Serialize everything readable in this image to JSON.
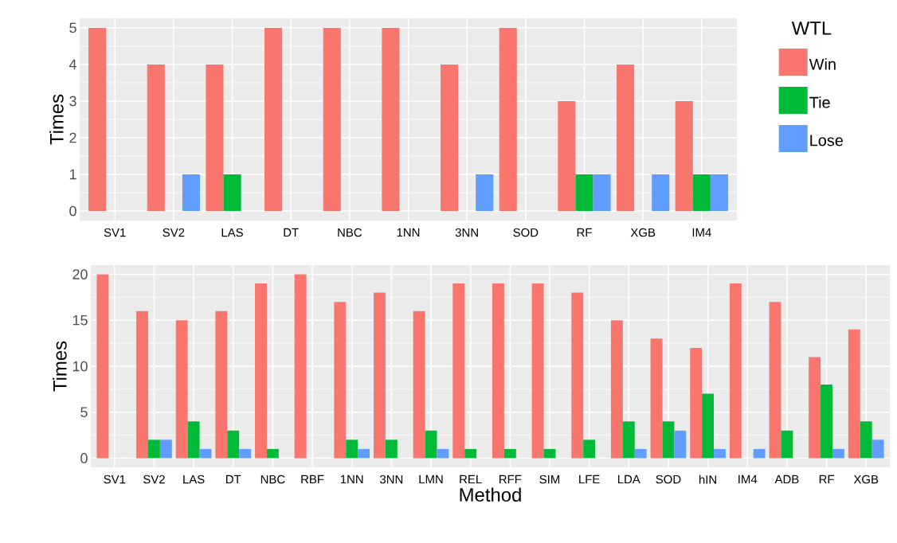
{
  "chart_data": [
    {
      "type": "bar",
      "ylabel": "Times",
      "legend_title": "WTL",
      "legend": "right",
      "grid": true,
      "categories": [
        "SV1",
        "SV2",
        "LAS",
        "DT",
        "NBC",
        "1NN",
        "3NN",
        "SOD",
        "RF",
        "XGB",
        "IM4"
      ],
      "ylim": [
        -0.26,
        5.26
      ],
      "yticks": [
        0,
        1,
        2,
        3,
        4,
        5
      ],
      "series": [
        {
          "name": "Win",
          "color": "#f8766d",
          "values": [
            5,
            4,
            4,
            5,
            5,
            5,
            4,
            5,
            3,
            4,
            3
          ]
        },
        {
          "name": "Tie",
          "color": "#00ba38",
          "values": [
            null,
            null,
            1,
            null,
            null,
            null,
            null,
            null,
            1,
            null,
            1
          ]
        },
        {
          "name": "Lose",
          "color": "#619cff",
          "values": [
            null,
            1,
            null,
            null,
            null,
            null,
            1,
            null,
            1,
            1,
            1
          ]
        }
      ]
    },
    {
      "type": "bar",
      "ylabel": "Times",
      "xlabel": "Method",
      "grid": true,
      "categories": [
        "SV1",
        "SV2",
        "LAS",
        "DT",
        "NBC",
        "RBF",
        "1NN",
        "3NN",
        "LMN",
        "REL",
        "RFF",
        "SIM",
        "LFE",
        "LDA",
        "SOD",
        "hIN",
        "IM4",
        "ADB",
        "RF",
        "XGB"
      ],
      "ylim": [
        -1,
        21
      ],
      "yticks": [
        0,
        5,
        10,
        15,
        20
      ],
      "series": [
        {
          "color": "#f8766d",
          "values": [
            20,
            16,
            15,
            16,
            19,
            20,
            17,
            18,
            16,
            19,
            19,
            19,
            18,
            15,
            13,
            12,
            19,
            17,
            11,
            14
          ]
        },
        {
          "color": "#00ba38",
          "values": [
            null,
            2,
            4,
            3,
            1,
            null,
            2,
            2,
            3,
            1,
            1,
            1,
            2,
            4,
            4,
            7,
            null,
            3,
            8,
            4
          ]
        },
        {
          "color": "#619cff",
          "values": [
            null,
            2,
            1,
            1,
            null,
            null,
            1,
            null,
            1,
            null,
            null,
            null,
            null,
            1,
            3,
            1,
            1,
            null,
            1,
            2
          ]
        }
      ]
    }
  ]
}
